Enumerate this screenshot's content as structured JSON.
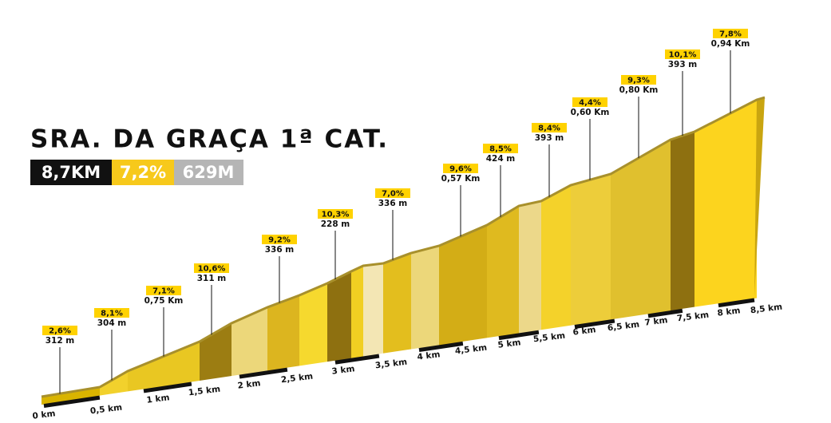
{
  "header": {
    "title": "SRA. DA GRAÇA 1ª CAT.",
    "distance": "8,7KM",
    "gradient": "7,2%",
    "elevation": "629M"
  },
  "callouts": [
    {
      "gradient": "2,6%",
      "detail": "312 m"
    },
    {
      "gradient": "8,1%",
      "detail": "304 m"
    },
    {
      "gradient": "7,1%",
      "detail": "0,75 Km"
    },
    {
      "gradient": "10,6%",
      "detail": "311 m"
    },
    {
      "gradient": "9,2%",
      "detail": "336 m"
    },
    {
      "gradient": "10,3%",
      "detail": "228 m"
    },
    {
      "gradient": "7,0%",
      "detail": "336 m"
    },
    {
      "gradient": "9,6%",
      "detail": "0,57 Km"
    },
    {
      "gradient": "8,5%",
      "detail": "424 m"
    },
    {
      "gradient": "8,4%",
      "detail": "393 m"
    },
    {
      "gradient": "4,4%",
      "detail": "0,60 Km"
    },
    {
      "gradient": "9,3%",
      "detail": "0,80 Km"
    },
    {
      "gradient": "10,1%",
      "detail": "393 m"
    },
    {
      "gradient": "7,8%",
      "detail": "0,94 Km"
    }
  ],
  "km_labels": [
    "0 km",
    "0,5 km",
    "1 km",
    "1,5 km",
    "2 km",
    "2,5 km",
    "3 km",
    "3,5 km",
    "4 km",
    "4,5 km",
    "5 km",
    "5,5 km",
    "6 km",
    "6,5 km",
    "7 km",
    "7,5 km",
    "8 km",
    "8,5 km"
  ]
}
